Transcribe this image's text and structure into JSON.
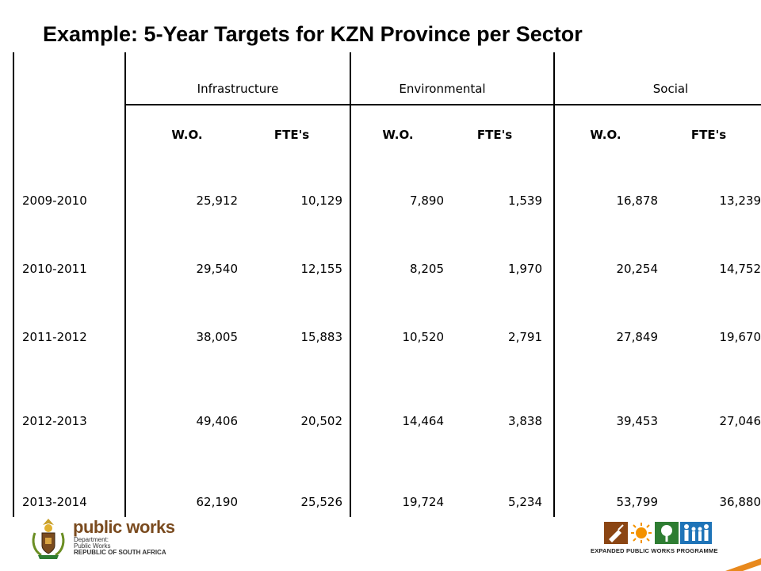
{
  "title": "Example: 5-Year Targets for KZN Province per Sector",
  "table": {
    "groups": [
      "Infrastructure",
      "Environmental",
      "Social"
    ],
    "subheaders": [
      "W.O.",
      "FTE's",
      "W.O.",
      "FTE's",
      "W.O.",
      "FTE's"
    ],
    "rows": [
      {
        "year": "2009-2010",
        "values": [
          "25,912",
          "10,129",
          "7,890",
          "1,539",
          "16,878",
          "13,239"
        ]
      },
      {
        "year": "2010-2011",
        "values": [
          "29,540",
          "12,155",
          "8,205",
          "1,970",
          "20,254",
          "14,752"
        ]
      },
      {
        "year": "2011-2012",
        "values": [
          "38,005",
          "15,883",
          "10,520",
          "2,791",
          "27,849",
          "19,670"
        ]
      },
      {
        "year": "2012-2013",
        "values": [
          "49,406",
          "20,502",
          "14,464",
          "3,838",
          "39,453",
          "27,046"
        ]
      },
      {
        "year": "2013-2014",
        "values": [
          "62,190",
          "25,526",
          "19,724",
          "5,234",
          "53,799",
          "36,880"
        ]
      }
    ]
  },
  "footer": {
    "public_works": {
      "name": "public works",
      "line1": "Department:",
      "line2": "Public Works",
      "line3": "REPUBLIC OF SOUTH AFRICA"
    },
    "epwp": {
      "name": "EXPANDED PUBLIC WORKS PROGRAMME"
    }
  },
  "colors": {
    "public_works_brown": "#7a4b1f",
    "epwp_brown": "#8b4513",
    "epwp_orange": "#f39200",
    "epwp_green": "#2e7d32",
    "epwp_blue": "#1f74b8",
    "accent_orange": "#e8891d"
  },
  "icons": [
    "coat-of-arms-icon",
    "trowel-icon",
    "sun-icon",
    "tree-icon",
    "family-icon"
  ]
}
